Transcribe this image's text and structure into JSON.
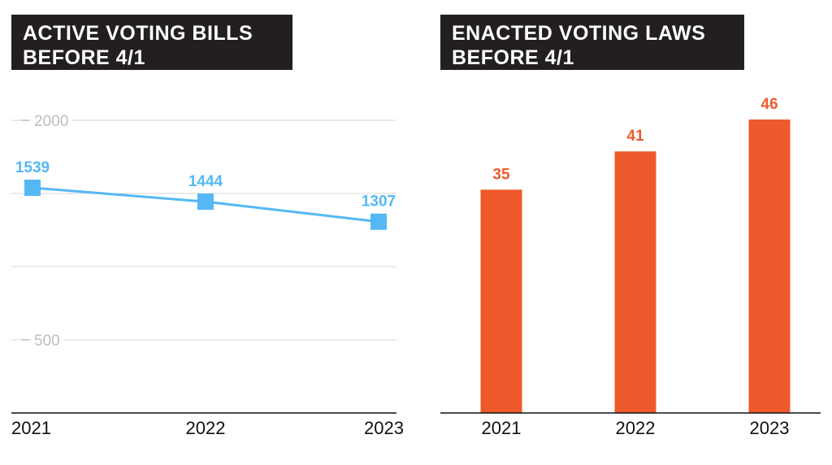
{
  "colors": {
    "line": "#54b8f4",
    "bar": "#ee5a2c",
    "title_bg": "#231f20",
    "grid": "#d6d6d6"
  },
  "chart_data": [
    {
      "type": "line",
      "title_lines": [
        "ACTIVE VOTING BILLS",
        "BEFORE 4/1"
      ],
      "categories": [
        "2021",
        "2022",
        "2023"
      ],
      "series": [
        {
          "name": "Active voting bills",
          "values": [
            1539,
            1444,
            1307
          ]
        }
      ],
      "y_ticks": [
        2000,
        500
      ],
      "ylim": [
        0,
        2000
      ],
      "grid": true
    },
    {
      "type": "bar",
      "title_lines": [
        "ENACTED VOTING LAWS",
        "BEFORE 4/1"
      ],
      "categories": [
        "2021",
        "2022",
        "2023"
      ],
      "values": [
        35,
        41,
        46
      ],
      "ylim": [
        0,
        46
      ]
    }
  ]
}
